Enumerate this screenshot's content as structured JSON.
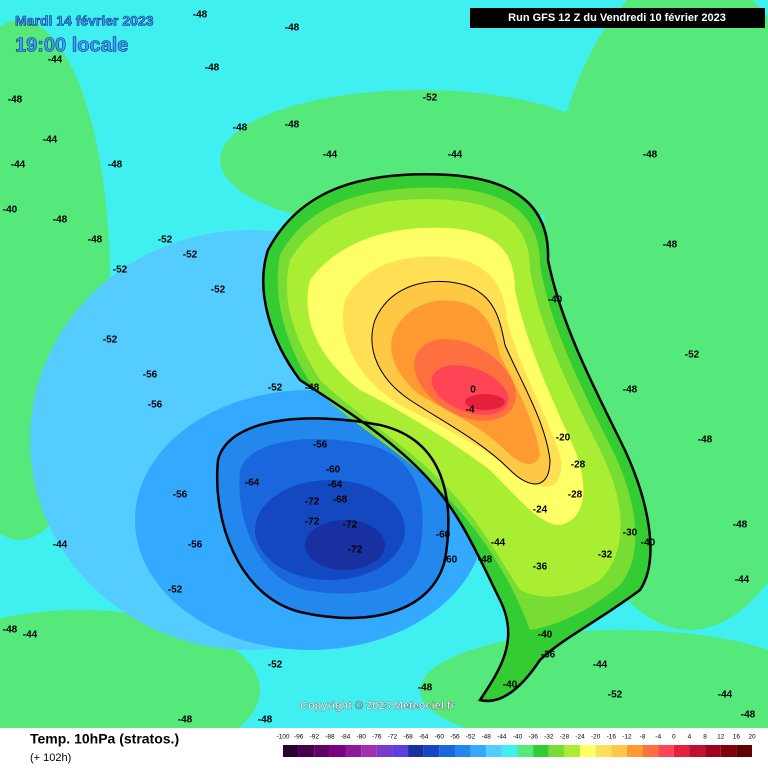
{
  "header": {
    "date": "Mardi 14 février 2023",
    "time": "19:00 locale",
    "run": "Run GFS 12 Z du Vendredi 10 février 2023"
  },
  "copyright": "Copyright © 2023 Meteociel.fr",
  "legend": {
    "title": "Temp. 10hPa (stratos.)",
    "lead": "(+ 102h)",
    "ticks": [
      -100,
      -96,
      -92,
      -88,
      -84,
      -80,
      -76,
      -72,
      -68,
      -64,
      -60,
      -56,
      -52,
      -48,
      -44,
      -40,
      -36,
      -32,
      -28,
      -24,
      -20,
      -16,
      -12,
      -8,
      -4,
      0,
      4,
      8,
      12,
      16,
      20
    ],
    "colors": [
      "#2a0030",
      "#45004a",
      "#600066",
      "#7a0080",
      "#8e1a99",
      "#a030b0",
      "#7a3ad0",
      "#5a40e0",
      "#1830a0",
      "#1448c0",
      "#1a66dd",
      "#2288ee",
      "#33aaff",
      "#55ccff",
      "#40f0f0",
      "#55e87a",
      "#33cc33",
      "#77dd33",
      "#aaee33",
      "#ffff66",
      "#ffe055",
      "#ffc844",
      "#ff9a33",
      "#ff7040",
      "#ff4455",
      "#e6203a",
      "#c01030",
      "#a00020",
      "#800010",
      "#600000"
    ]
  },
  "map": {
    "contour_labels": [
      -48,
      -48,
      -48,
      -48,
      -44,
      -48,
      -48,
      -44,
      -44,
      -52,
      -48,
      -44,
      -40,
      -48,
      -52,
      -52,
      -52,
      -52,
      -52,
      -56,
      -56,
      -52,
      -48,
      -56,
      -56,
      -64,
      -60,
      -64,
      -68,
      -72,
      -72,
      -72,
      -72,
      -60,
      -60,
      -52,
      -56,
      -44,
      -44,
      -48,
      -52,
      -48,
      -40,
      -36,
      -40,
      -44,
      -52,
      -44,
      -48,
      -48,
      -48,
      -52,
      -48,
      -48,
      -44,
      -48,
      -40,
      -48,
      -48,
      0,
      -4,
      -20,
      -28,
      -24,
      -28,
      -32,
      -36,
      -30,
      -40,
      -48,
      -44,
      -48,
      -44
    ]
  }
}
